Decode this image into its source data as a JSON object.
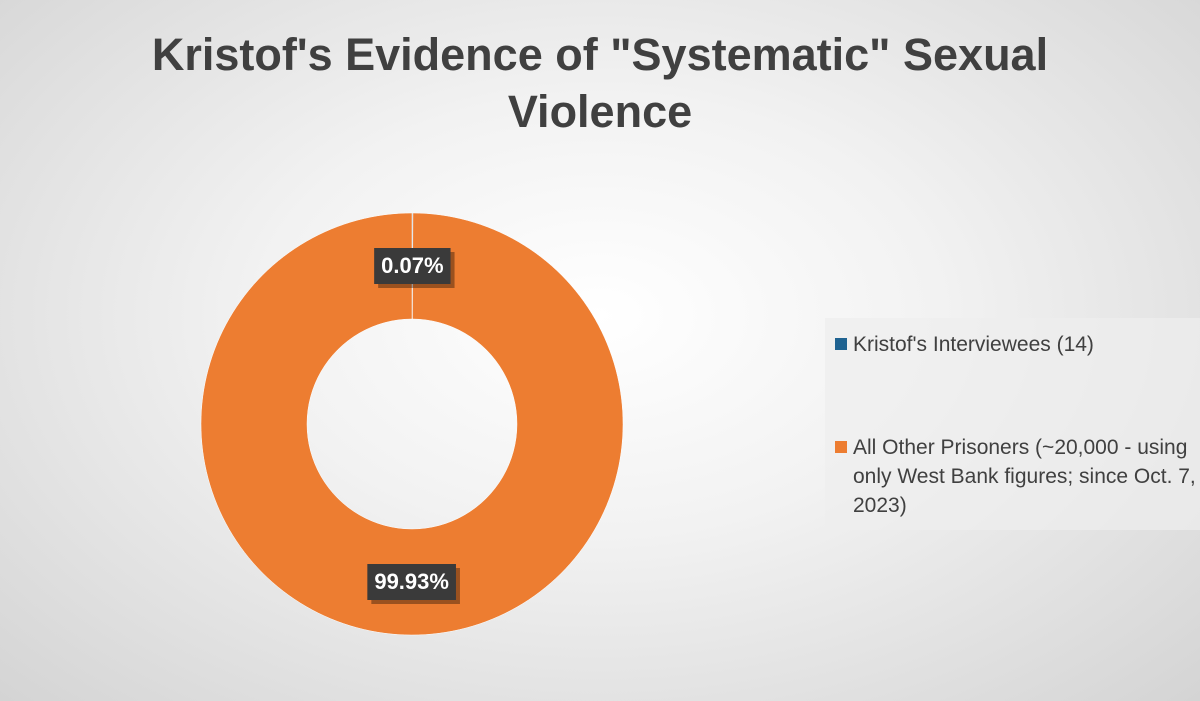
{
  "chart_data": {
    "type": "donut",
    "title": "Kristof's Evidence of \"Systematic\" Sexual Violence",
    "categories": [
      "Kristof's Interviewees (14)",
      "All Other Prisoners (~20,000 - using only West Bank figures; since Oct. 7, 2023)"
    ],
    "values": [
      0.07,
      99.93
    ],
    "value_labels": [
      "0.07%",
      "99.93%"
    ],
    "colors": [
      "#1f6391",
      "#ed7d31"
    ],
    "legend": "right"
  }
}
